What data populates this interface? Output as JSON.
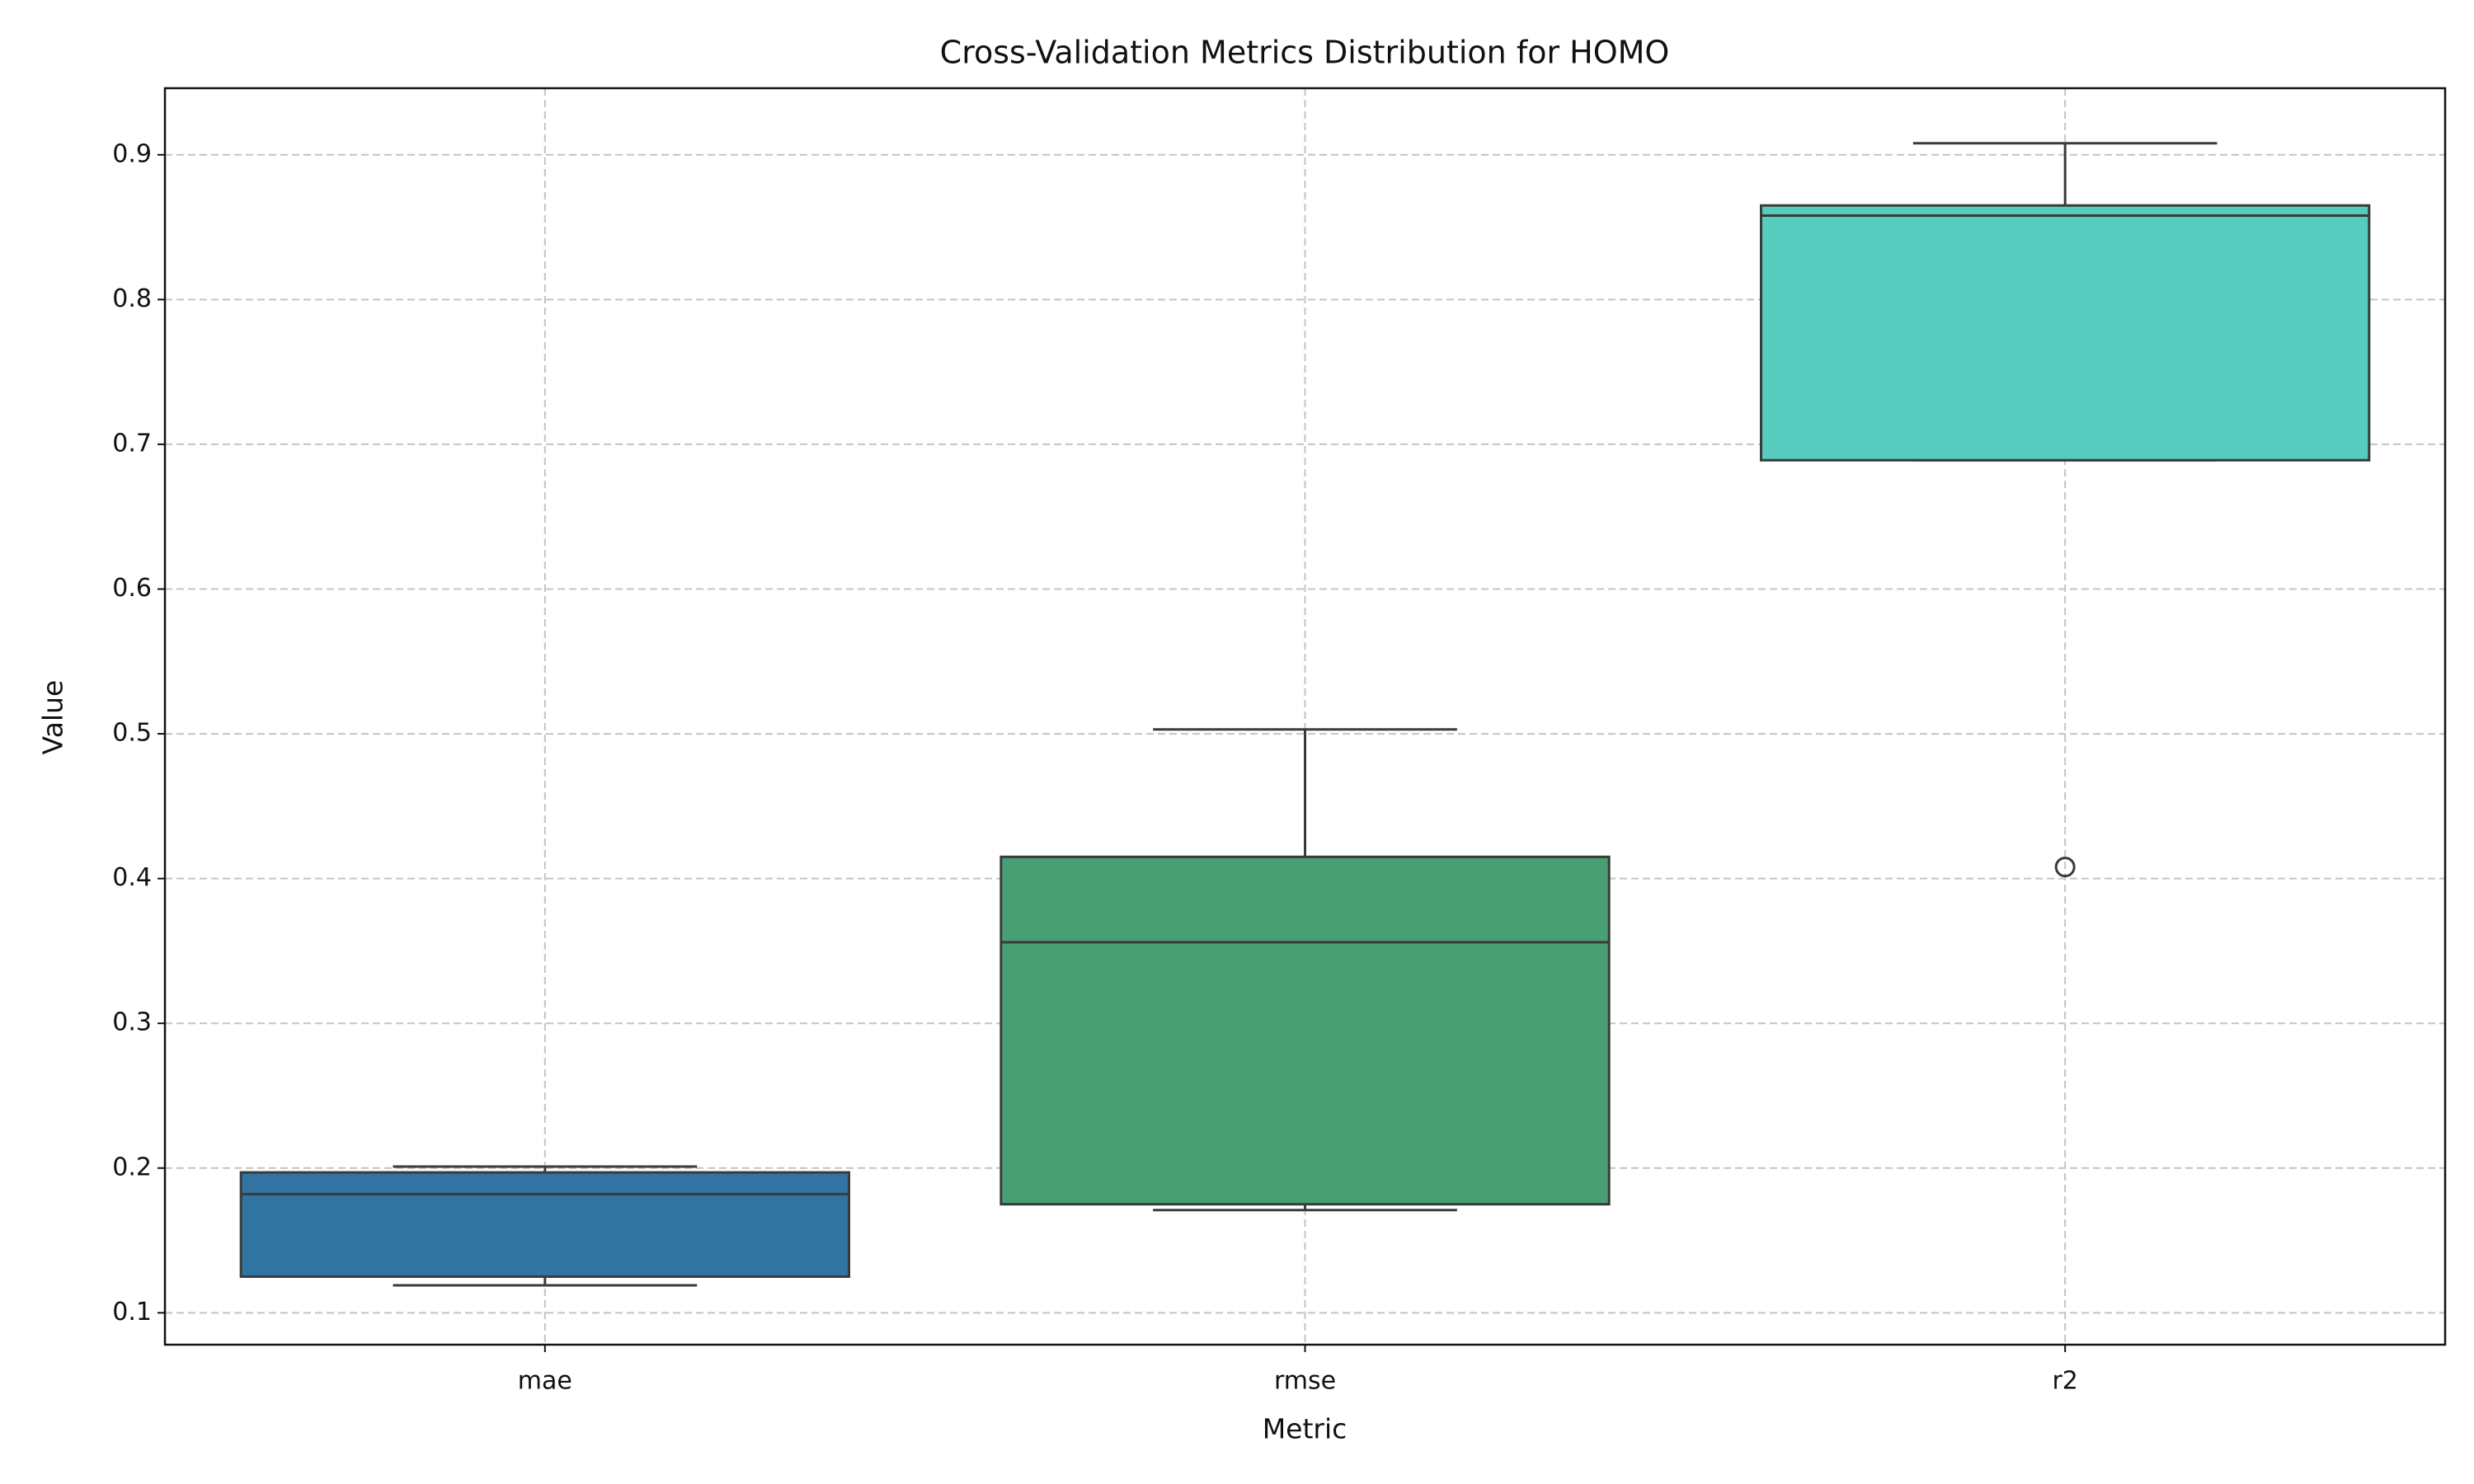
{
  "chart_data": {
    "type": "box",
    "title": "Cross-Validation Metrics Distribution for HOMO",
    "x_label": "Metric",
    "y_label": "Value",
    "categories": [
      "mae",
      "rmse",
      "r2"
    ],
    "colors": [
      "#3274a1",
      "#479f73",
      "#56cbbe"
    ],
    "boxes": [
      {
        "min": 0.119,
        "q1": 0.125,
        "median": 0.182,
        "q3": 0.197,
        "max": 0.201,
        "outliers": []
      },
      {
        "min": 0.171,
        "q1": 0.175,
        "median": 0.356,
        "q3": 0.415,
        "max": 0.503,
        "outliers": []
      },
      {
        "min": 0.689,
        "q1": 0.689,
        "median": 0.858,
        "q3": 0.865,
        "max": 0.908,
        "outliers": [
          0.408
        ]
      }
    ],
    "ylim": [
      0.078,
      0.946
    ],
    "yticks": [
      0.1,
      0.2,
      0.3,
      0.4,
      0.5,
      0.6,
      0.7,
      0.8,
      0.9
    ],
    "grid": true
  }
}
